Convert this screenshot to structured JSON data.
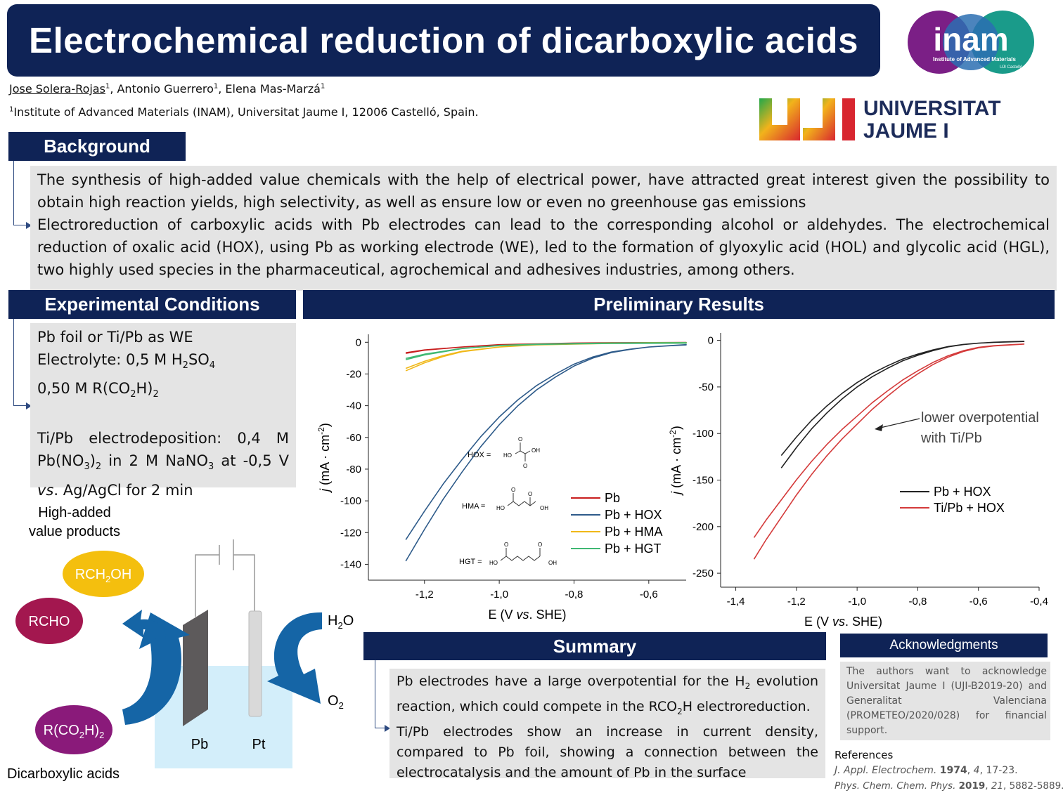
{
  "title": "Electrochemical reduction of dicarboxylic acids",
  "authors": {
    "first": "Jose Solera-Rojas",
    "sup1": "1",
    "second": ", Antonio Guerrero",
    "sup2": "1",
    "third": ", Elena Mas-Marzá",
    "sup3": "1"
  },
  "affiliation": {
    "sup": "1",
    "text": "Institute of Advanced Materials (INAM), Universitat Jaume I, 12006 Castelló, Spain."
  },
  "logos": {
    "inam": {
      "name": "inam",
      "subtitle": "Institute of Advanced Materials",
      "small": "UJI Castelló"
    },
    "uji": {
      "letters": "UJI",
      "line1": "UNIVERSITAT",
      "line2": "JAUME I"
    }
  },
  "background": {
    "heading": "Background",
    "p1": "The synthesis of high-added value chemicals with the help of electrical power, have attracted great interest given the possibility to obtain high reaction yields, high selectivity, as well as ensure low or even no greenhouse gas emissions",
    "p2": "Electroreduction of carboxylic acids with Pb electrodes can lead to the corresponding alcohol or aldehydes. The electrochemical reduction of oxalic acid (HOX), using Pb as working electrode (WE), led to the formation of glyoxylic acid (HOL) and glycolic acid (HGL), two highly used species in the pharmaceutical, agrochemical and adhesives industries, among others."
  },
  "experimental": {
    "heading": "Experimental Conditions",
    "line1": "Pb foil or Ti/Pb as WE",
    "line2_a": "Electrolyte: 0,5 M H",
    "line2_s1": "2",
    "line2_b": "SO",
    "line2_s2": "4",
    "line3_a": "0,50 M R(CO",
    "line3_s1": "2",
    "line3_b": "H)",
    "line3_s2": "2",
    "line4": "Ti/Pb electrodeposition: 0,4 M",
    "line5_a": "Pb(NO",
    "line5_s1": "3",
    "line5_b": ")",
    "line5_s2": "2",
    "line5_c": " in 2 M NaNO",
    "line5_s3": "3",
    "line5_d": " at -0,5 V",
    "line6_i": "vs",
    "line6_rest": ". Ag/AgCl for 2 min"
  },
  "scheme": {
    "caption_line1": "High-added",
    "caption_line2": "value products",
    "rch2oh_a": "RCH",
    "rch2oh_s": "2",
    "rch2oh_b": "OH",
    "rcho": "RCHO",
    "rco2h2_a": "R(CO",
    "rco2h2_s1": "2",
    "rco2h2_b": "H)",
    "rco2h2_s2": "2",
    "dicarboxylic": "Dicarboxylic acids",
    "pb": "Pb",
    "pt": "Pt",
    "h2o_a": "H",
    "h2o_s": "2",
    "h2o_b": "O",
    "o2_a": "O",
    "o2_s": "2",
    "colors": {
      "rch2oh": "#f4bf0e",
      "rcho": "#a3174f",
      "rco2h2": "#8a1a7a",
      "arrow": "#1565a6",
      "beaker": "#d3eefa"
    }
  },
  "results": {
    "heading": "Preliminary Results"
  },
  "summary": {
    "heading": "Summary",
    "s1_a": "Pb electrodes have a large overpotential for the H",
    "s1_sub": "2",
    "s1_b": " evolution reaction, which could compete in the RCO",
    "s1_sub2": "2",
    "s1_c": "H electroreduction.",
    "s2": "Ti/Pb electrodes show an increase in current density, compared to Pb foil, showing a connection between the electrocatalysis and the amount of Pb in the surface"
  },
  "acknowledgments": {
    "heading": "Acknowledgments",
    "text": "The authors want to acknowledge Universitat Jaume I (UJI-B2019-20) and Generalitat Valenciana (PROMETEO/2020/028) for financial support."
  },
  "references": {
    "heading": "References",
    "r1_j": "J. Appl. Electrochem.",
    "r1_y": "1974",
    "r1_v": "4",
    "r1_p": ", 17-23.",
    "r2_j": "Phys. Chem. Chem. Phys.",
    "r2_y": "2019",
    "r2_v": "21",
    "r2_p": ", 5882-5889."
  },
  "chart_data": [
    {
      "type": "line",
      "xlabel_a": "E (V ",
      "xlabel_i": "vs",
      "xlabel_b": ". SHE)",
      "ylabel_a": "j",
      "ylabel_b": " (mA · cm",
      "ylabel_sup": "-2",
      "ylabel_c": ")",
      "xlim": [
        -1.35,
        -0.5
      ],
      "ylim": [
        -150,
        5
      ],
      "xticks": [
        -1.2,
        -1.0,
        -0.8,
        -0.6
      ],
      "xtick_labels": [
        "-1,2",
        "-1,0",
        "-0,8",
        "-0,6"
      ],
      "yticks": [
        0,
        -20,
        -40,
        -60,
        -80,
        -100,
        -120,
        -140
      ],
      "ytick_labels": [
        "0",
        "-20",
        "-40",
        "-60",
        "-80",
        "-100",
        "-120",
        "-140"
      ],
      "legend_position": "bottom-right",
      "series": [
        {
          "name": "Pb",
          "color": "#c81e1e",
          "x": [
            -1.25,
            -1.2,
            -1.1,
            -1.0,
            -0.9,
            -0.8,
            -0.7,
            -0.6,
            -0.5
          ],
          "y": [
            -7,
            -5,
            -3,
            -1.5,
            -1,
            -0.5,
            -0.3,
            -0.2,
            -0.1
          ]
        },
        {
          "name": "Pb + HOX",
          "color": "#2e5b8a",
          "x": [
            -1.25,
            -1.2,
            -1.15,
            -1.1,
            -1.05,
            -1.0,
            -0.95,
            -0.9,
            -0.85,
            -0.8,
            -0.75,
            -0.7,
            -0.65,
            -0.6,
            -0.55,
            -0.5
          ],
          "y": [
            -138,
            -118,
            -99,
            -82,
            -66,
            -52,
            -40,
            -30,
            -22,
            -15,
            -10,
            -6.5,
            -4.5,
            -3,
            -2.2,
            -1.5
          ]
        },
        {
          "name": "Pb + HMA",
          "color": "#f0b818",
          "x": [
            -1.25,
            -1.2,
            -1.15,
            -1.1,
            -1.0,
            -0.9,
            -0.8,
            -0.7,
            -0.6,
            -0.5
          ],
          "y": [
            -18,
            -13,
            -9,
            -6,
            -3,
            -1.5,
            -1,
            -0.5,
            -0.3,
            -0.2
          ]
        },
        {
          "name": "Pb + HGT",
          "color": "#3fb873",
          "x": [
            -1.25,
            -1.2,
            -1.1,
            -1.0,
            -0.9,
            -0.8,
            -0.7,
            -0.6,
            -0.5
          ],
          "y": [
            -11,
            -8,
            -4,
            -2,
            -1.2,
            -0.8,
            -0.5,
            -0.4,
            -0.3
          ]
        }
      ],
      "annotations": {
        "hox": "HOX =",
        "hma": "HMA =",
        "hgt": "HGT =",
        "ho": "HO",
        "oh": "OH",
        "o": "O"
      }
    },
    {
      "type": "line",
      "xlabel_a": "E (V ",
      "xlabel_i": "vs",
      "xlabel_b": ". SHE)",
      "ylabel_a": "j",
      "ylabel_b": " (mA · cm",
      "ylabel_sup": "-2",
      "ylabel_c": ")",
      "xlim": [
        -1.45,
        -0.4
      ],
      "ylim": [
        -265,
        8
      ],
      "xticks": [
        -1.4,
        -1.2,
        -1.0,
        -0.8,
        -0.6,
        -0.4
      ],
      "xtick_labels": [
        "-1,4",
        "-1,2",
        "-1,0",
        "-0,8",
        "-0,6",
        "-0,4"
      ],
      "yticks": [
        0,
        -50,
        -100,
        -150,
        -200,
        -250
      ],
      "ytick_labels": [
        "0",
        "-50",
        "-100",
        "-150",
        "-200",
        "-250"
      ],
      "legend_position": "right",
      "series": [
        {
          "name": "Pb + HOX",
          "color": "#222222",
          "x": [
            -1.25,
            -1.2,
            -1.15,
            -1.1,
            -1.05,
            -1.0,
            -0.95,
            -0.9,
            -0.85,
            -0.8,
            -0.75,
            -0.7,
            -0.65,
            -0.6,
            -0.55,
            -0.5,
            -0.45
          ],
          "y": [
            -137,
            -115,
            -95,
            -78,
            -63,
            -50,
            -39,
            -30,
            -22,
            -16,
            -11,
            -7,
            -4.5,
            -3,
            -2,
            -1.5,
            -1
          ]
        },
        {
          "name": "Ti/Pb + HOX",
          "color": "#d43a3a",
          "x": [
            -1.34,
            -1.3,
            -1.25,
            -1.2,
            -1.15,
            -1.1,
            -1.05,
            -1.0,
            -0.95,
            -0.9,
            -0.85,
            -0.8,
            -0.75,
            -0.7,
            -0.65,
            -0.6,
            -0.55,
            -0.5,
            -0.45
          ],
          "y": [
            -235,
            -214,
            -190,
            -166,
            -144,
            -124,
            -106,
            -90,
            -74,
            -60,
            -47,
            -36,
            -26,
            -18,
            -12,
            -8,
            -6,
            -5,
            -4
          ]
        }
      ],
      "annotation_line1": "lower overpotential",
      "annotation_line2": "with Ti/Pb"
    }
  ]
}
